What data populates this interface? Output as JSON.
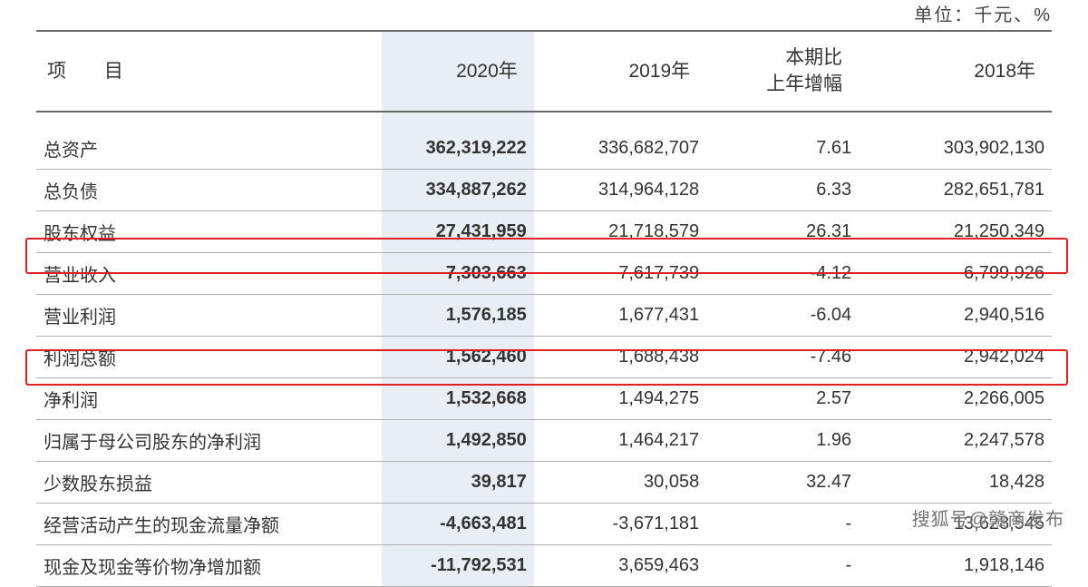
{
  "unit_label": "单位：千元、%",
  "columns": {
    "project": "项 目",
    "y2020": "2020年",
    "y2019": "2019年",
    "change_line1": "本期比",
    "change_line2": "上年增幅",
    "y2018": "2018年"
  },
  "rows": [
    {
      "label": "总资产",
      "y2020": "362,319,222",
      "y2019": "336,682,707",
      "change": "7.61",
      "y2018": "303,902,130",
      "hl": false
    },
    {
      "label": "总负债",
      "y2020": "334,887,262",
      "y2019": "314,964,128",
      "change": "6.33",
      "y2018": "282,651,781",
      "hl": false
    },
    {
      "label": "股东权益",
      "y2020": "27,431,959",
      "y2019": "21,718,579",
      "change": "26.31",
      "y2018": "21,250,349",
      "hl": false
    },
    {
      "label": "营业收入",
      "y2020": "7,303,663",
      "y2019": "7,617,739",
      "change": "-4.12",
      "y2018": "6,799,926",
      "hl": true
    },
    {
      "label": "营业利润",
      "y2020": "1,576,185",
      "y2019": "1,677,431",
      "change": "-6.04",
      "y2018": "2,940,516",
      "hl": false
    },
    {
      "label": "利润总额",
      "y2020": "1,562,460",
      "y2019": "1,688,438",
      "change": "-7.46",
      "y2018": "2,942,024",
      "hl": false
    },
    {
      "label": "净利润",
      "y2020": "1,532,668",
      "y2019": "1,494,275",
      "change": "2.57",
      "y2018": "2,266,005",
      "hl": true
    },
    {
      "label": "归属于母公司股东的净利润",
      "y2020": "1,492,850",
      "y2019": "1,464,217",
      "change": "1.96",
      "y2018": "2,247,578",
      "hl": false
    },
    {
      "label": "少数股东损益",
      "y2020": "39,817",
      "y2019": "30,058",
      "change": "32.47",
      "y2018": "18,428",
      "hl": false
    },
    {
      "label": "经营活动产生的现金流量净额",
      "y2020": "-4,663,481",
      "y2019": "-3,671,181",
      "change": "-",
      "y2018": "13,628,545",
      "hl": false
    },
    {
      "label": "现金及现金等价物净增加额",
      "y2020": "-11,792,531",
      "y2019": "3,659,463",
      "change": "-",
      "y2018": "1,918,146",
      "hl": false
    }
  ],
  "highlight_color": "#e02020",
  "col2020_bg": "#e9eef4",
  "watermark": "搜狐号@赣商发布"
}
